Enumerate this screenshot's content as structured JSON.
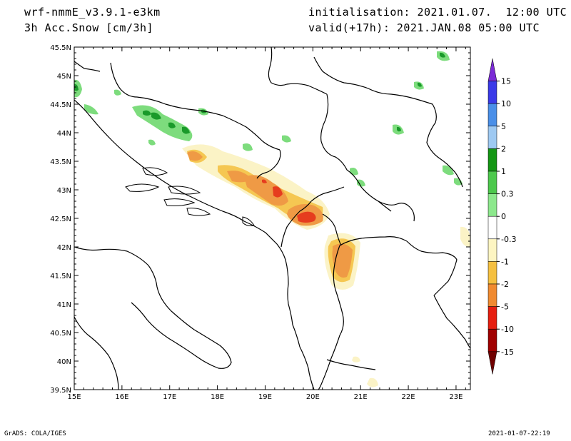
{
  "header": {
    "model": "wrf-nmmE_v3.9.1-e3km",
    "field": "3h Acc.Snow [cm/3h]",
    "initialisation": "initialisation: 2021.01.07.  12:00 UTC",
    "valid": "valid(+17h): 2021.JAN.08 05:00 UTC"
  },
  "footer": {
    "credit": "GrADS: COLA/IGES",
    "timestamp": "2021-01-07-22:19"
  },
  "map": {
    "lon_range": [
      15,
      23.3
    ],
    "lat_range": [
      39.5,
      45.5
    ],
    "lon_ticks": [
      "15E",
      "16E",
      "17E",
      "18E",
      "19E",
      "20E",
      "21E",
      "22E",
      "23E"
    ],
    "lat_ticks": [
      "39.5N",
      "40N",
      "40.5N",
      "41N",
      "41.5N",
      "42N",
      "42.5N",
      "43N",
      "43.5N",
      "44N",
      "44.5N",
      "45N",
      "45.5N"
    ]
  },
  "colorbar": {
    "labels": [
      "15",
      "10",
      "5",
      "2",
      "1",
      "0.3",
      "0",
      "-0.3",
      "-1",
      "-2",
      "-5",
      "-10",
      "-15"
    ],
    "colors": [
      "#7b2bd6",
      "#3a3ae8",
      "#4a8fe8",
      "#9ec9f2",
      "#149614",
      "#4cc84c",
      "#8ce88c",
      "#ffffff",
      "#fdf5c2",
      "#f5c040",
      "#f08a30",
      "#e61e10",
      "#a00000",
      "#700000"
    ]
  },
  "snow_colors": {
    "light": "#fbf3c6",
    "moderate": "#f5c752",
    "heavy": "#ef9a45",
    "very_heavy": "#e63c1e",
    "green_light": "#7ddc7d",
    "green_dark": "#1a9a2a"
  }
}
